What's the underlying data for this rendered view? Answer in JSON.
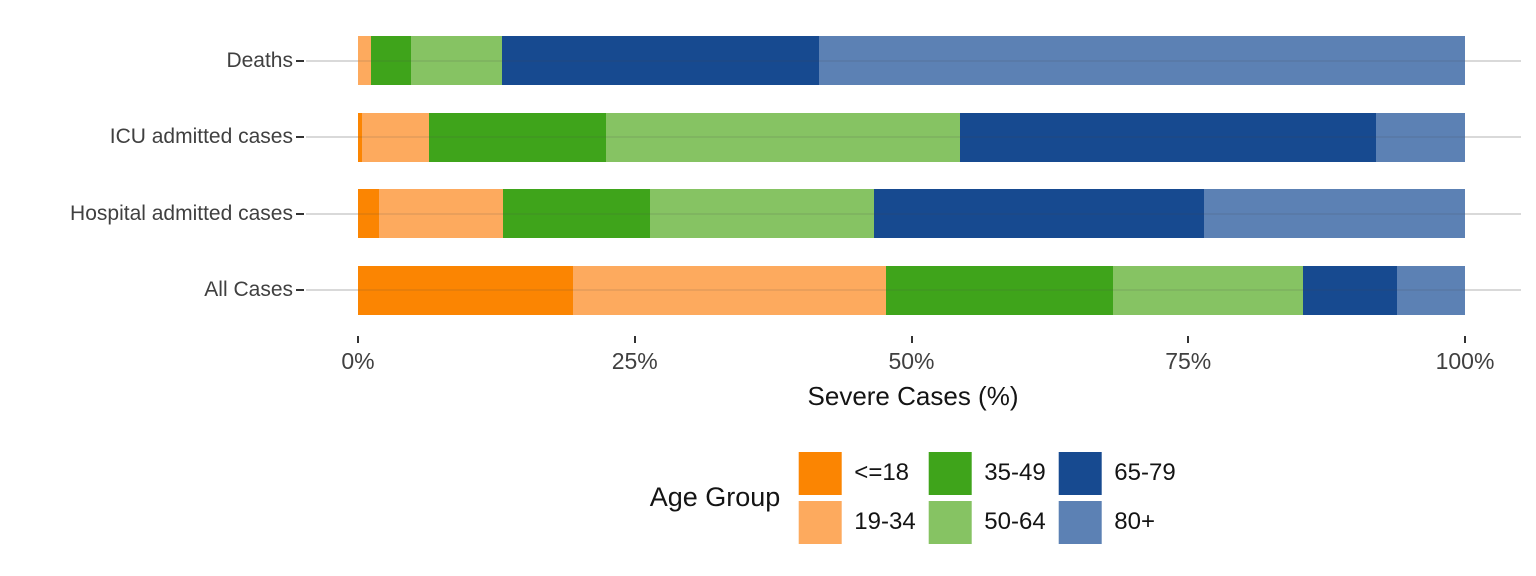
{
  "chart_data": {
    "type": "bar",
    "orientation": "horizontal",
    "stacked": true,
    "xlabel": "Severe Cases (%)",
    "xlim": [
      0,
      100
    ],
    "x_ticks": [
      {
        "pct": 0,
        "label": "0%"
      },
      {
        "pct": 25,
        "label": "25%"
      },
      {
        "pct": 50,
        "label": "50%"
      },
      {
        "pct": 75,
        "label": "75%"
      },
      {
        "pct": 100,
        "label": "100%"
      }
    ],
    "legend_title": "Age Group",
    "legend_position": "bottom",
    "grid": "horizontal-category-lines-only",
    "background": "#FFFFFF",
    "grid_color": "#D9D9D9",
    "axis_text_color": "#404040",
    "groups": [
      {
        "name": "<=18",
        "color": "#FB8502"
      },
      {
        "name": "19-34",
        "color": "#FDAA5E"
      },
      {
        "name": "35-49",
        "color": "#3FA41B"
      },
      {
        "name": "50-64",
        "color": "#86C363"
      },
      {
        "name": "65-79",
        "color": "#174A90"
      },
      {
        "name": "80+",
        "color": "#5C81B4"
      }
    ],
    "categories": [
      "Deaths",
      "ICU admitted cases",
      "Hospital admitted cases",
      "All Cases"
    ],
    "rows": [
      {
        "label": "Deaths",
        "values": [
          0,
          1.2,
          3.6,
          8.2,
          28.6,
          58.4
        ]
      },
      {
        "label": "ICU admitted cases",
        "values": [
          0.4,
          6.0,
          16.0,
          32.0,
          37.6,
          8.0
        ]
      },
      {
        "label": "Hospital admitted cases",
        "values": [
          1.9,
          11.2,
          13.3,
          20.2,
          29.8,
          23.6
        ]
      },
      {
        "label": "All Cases",
        "values": [
          19.4,
          28.3,
          20.5,
          17.2,
          8.5,
          6.1
        ]
      }
    ]
  }
}
